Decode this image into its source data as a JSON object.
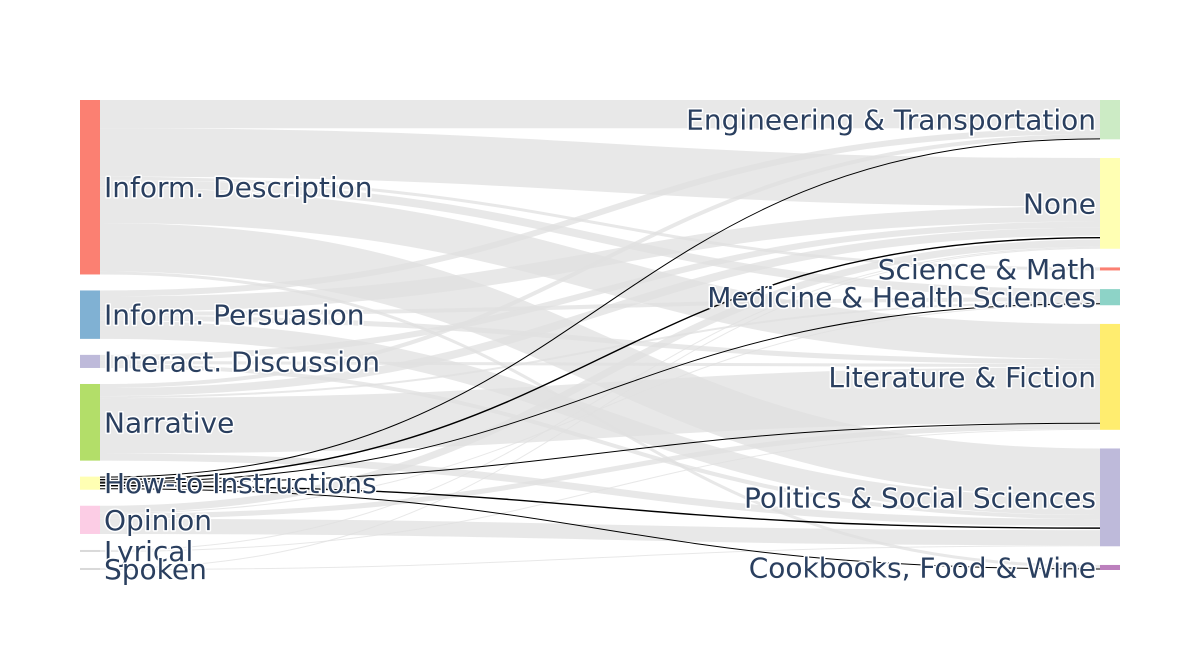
{
  "chart_data": {
    "type": "sankey",
    "sources": [
      {
        "name": "Inform. Description",
        "color": "#fb8072"
      },
      {
        "name": "Inform. Persuasion",
        "color": "#80b1d3"
      },
      {
        "name": "Interact. Discussion",
        "color": "#bebada"
      },
      {
        "name": "Narrative",
        "color": "#b3de69"
      },
      {
        "name": "How-to Instructions",
        "color": "#ffffb3"
      },
      {
        "name": "Opinion",
        "color": "#fccde5"
      },
      {
        "name": "Lyrical",
        "color": "#d9d9d9"
      },
      {
        "name": "Spoken",
        "color": "#d9d9d9"
      }
    ],
    "targets": [
      {
        "name": "Engineering & Transportation",
        "color": "#ccebc5"
      },
      {
        "name": "None",
        "color": "#ffffb3"
      },
      {
        "name": "Science & Math",
        "color": "#fb8072"
      },
      {
        "name": "Medicine & Health Sciences",
        "color": "#8dd3c7"
      },
      {
        "name": "Literature & Fiction",
        "color": "#ffed6f"
      },
      {
        "name": "Politics & Social Sciences",
        "color": "#bebada"
      },
      {
        "name": "Cookbooks, Food & Wine",
        "color": "#bc80bd"
      }
    ],
    "flows": [
      {
        "source": "Inform. Description",
        "target": "Engineering & Transportation",
        "value": 28
      },
      {
        "source": "Inform. Description",
        "target": "None",
        "value": 48
      },
      {
        "source": "Inform. Description",
        "target": "Science & Math",
        "value": 3
      },
      {
        "source": "Inform. Description",
        "target": "Medicine & Health Sciences",
        "value": 8
      },
      {
        "source": "Inform. Description",
        "target": "Literature & Fiction",
        "value": 35
      },
      {
        "source": "Inform. Description",
        "target": "Politics & Social Sciences",
        "value": 48
      },
      {
        "source": "Inform. Description",
        "target": "Cookbooks, Food & Wine",
        "value": 3
      },
      {
        "source": "Inform. Persuasion",
        "target": "Engineering & Transportation",
        "value": 6
      },
      {
        "source": "Inform. Persuasion",
        "target": "None",
        "value": 15
      },
      {
        "source": "Inform. Persuasion",
        "target": "Medicine & Health Sciences",
        "value": 4
      },
      {
        "source": "Inform. Persuasion",
        "target": "Literature & Fiction",
        "value": 5
      },
      {
        "source": "Inform. Persuasion",
        "target": "Politics & Social Sciences",
        "value": 18
      },
      {
        "source": "Interact. Discussion",
        "target": "None",
        "value": 6
      },
      {
        "source": "Interact. Discussion",
        "target": "Literature & Fiction",
        "value": 3
      },
      {
        "source": "Interact. Discussion",
        "target": "Politics & Social Sciences",
        "value": 4
      },
      {
        "source": "Narrative",
        "target": "Engineering & Transportation",
        "value": 4
      },
      {
        "source": "Narrative",
        "target": "None",
        "value": 8
      },
      {
        "source": "Narrative",
        "target": "Medicine & Health Sciences",
        "value": 2
      },
      {
        "source": "Narrative",
        "target": "Literature & Fiction",
        "value": 55
      },
      {
        "source": "Narrative",
        "target": "Politics & Social Sciences",
        "value": 7
      },
      {
        "source": "How-to Instructions",
        "target": "Engineering & Transportation",
        "value": 1
      },
      {
        "source": "How-to Instructions",
        "target": "None",
        "value": 4
      },
      {
        "source": "How-to Instructions",
        "target": "Medicine & Health Sciences",
        "value": 1
      },
      {
        "source": "How-to Instructions",
        "target": "Literature & Fiction",
        "value": 1
      },
      {
        "source": "How-to Instructions",
        "target": "Politics & Social Sciences",
        "value": 4
      },
      {
        "source": "How-to Instructions",
        "target": "Cookbooks, Food & Wine",
        "value": 2
      },
      {
        "source": "Opinion",
        "target": "None",
        "value": 7
      },
      {
        "source": "Opinion",
        "target": "Medicine & Health Sciences",
        "value": 1
      },
      {
        "source": "Opinion",
        "target": "Literature & Fiction",
        "value": 5
      },
      {
        "source": "Opinion",
        "target": "Politics & Social Sciences",
        "value": 15
      },
      {
        "source": "Lyrical",
        "target": "None",
        "value": 1
      },
      {
        "source": "Lyrical",
        "target": "Literature & Fiction",
        "value": 1
      },
      {
        "source": "Spoken",
        "target": "None",
        "value": 1
      },
      {
        "source": "Spoken",
        "target": "Politics & Social Sciences",
        "value": 1
      }
    ],
    "highlighted_source": "How-to Instructions",
    "link_color": "#e6e6e6",
    "highlight_color": "#000000",
    "label_color": "#2a3f5f"
  }
}
